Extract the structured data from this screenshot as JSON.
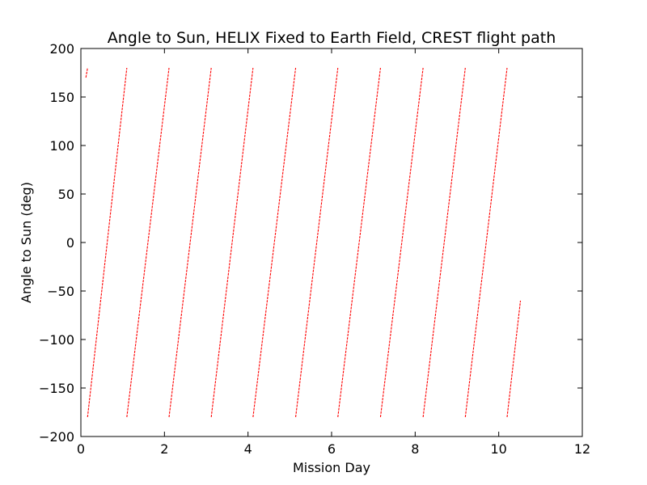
{
  "chart_data": {
    "type": "scatter",
    "title": "Angle to Sun, HELIX Fixed to Earth Field, CREST flight path",
    "xlabel": "Mission Day",
    "ylabel": "Angle to Sun (deg)",
    "xlim": [
      0,
      12
    ],
    "ylim": [
      -200,
      200
    ],
    "xticks": [
      0,
      2,
      4,
      6,
      8,
      10,
      12
    ],
    "yticks": [
      -200,
      -150,
      -100,
      -50,
      0,
      50,
      100,
      150,
      200
    ],
    "xtick_labels": [
      "0",
      "2",
      "4",
      "6",
      "8",
      "10",
      "12"
    ],
    "ytick_labels": [
      "−200",
      "−150",
      "−100",
      "−50",
      "0",
      "50",
      "100",
      "150",
      "200"
    ],
    "grid": false,
    "marker_color": "#ff0000",
    "series": [
      {
        "segments": [
          {
            "x": [
              0.12,
              0.16
            ],
            "y": [
              170,
              180
            ]
          },
          {
            "x": [
              0.16,
              1.1
            ],
            "y": [
              -180,
              180
            ]
          },
          {
            "x": [
              1.1,
              2.11
            ],
            "y": [
              -180,
              180
            ]
          },
          {
            "x": [
              2.11,
              3.12
            ],
            "y": [
              -180,
              180
            ]
          },
          {
            "x": [
              3.12,
              4.12
            ],
            "y": [
              -180,
              180
            ]
          },
          {
            "x": [
              4.12,
              5.14
            ],
            "y": [
              -180,
              180
            ]
          },
          {
            "x": [
              5.14,
              6.15
            ],
            "y": [
              -180,
              180
            ]
          },
          {
            "x": [
              6.15,
              7.17
            ],
            "y": [
              -180,
              180
            ]
          },
          {
            "x": [
              7.17,
              8.19
            ],
            "y": [
              -180,
              180
            ]
          },
          {
            "x": [
              8.19,
              9.2
            ],
            "y": [
              -180,
              180
            ]
          },
          {
            "x": [
              9.2,
              10.2
            ],
            "y": [
              -180,
              180
            ]
          },
          {
            "x": [
              10.2,
              10.52
            ],
            "y": [
              -180,
              -60
            ]
          }
        ]
      }
    ]
  }
}
